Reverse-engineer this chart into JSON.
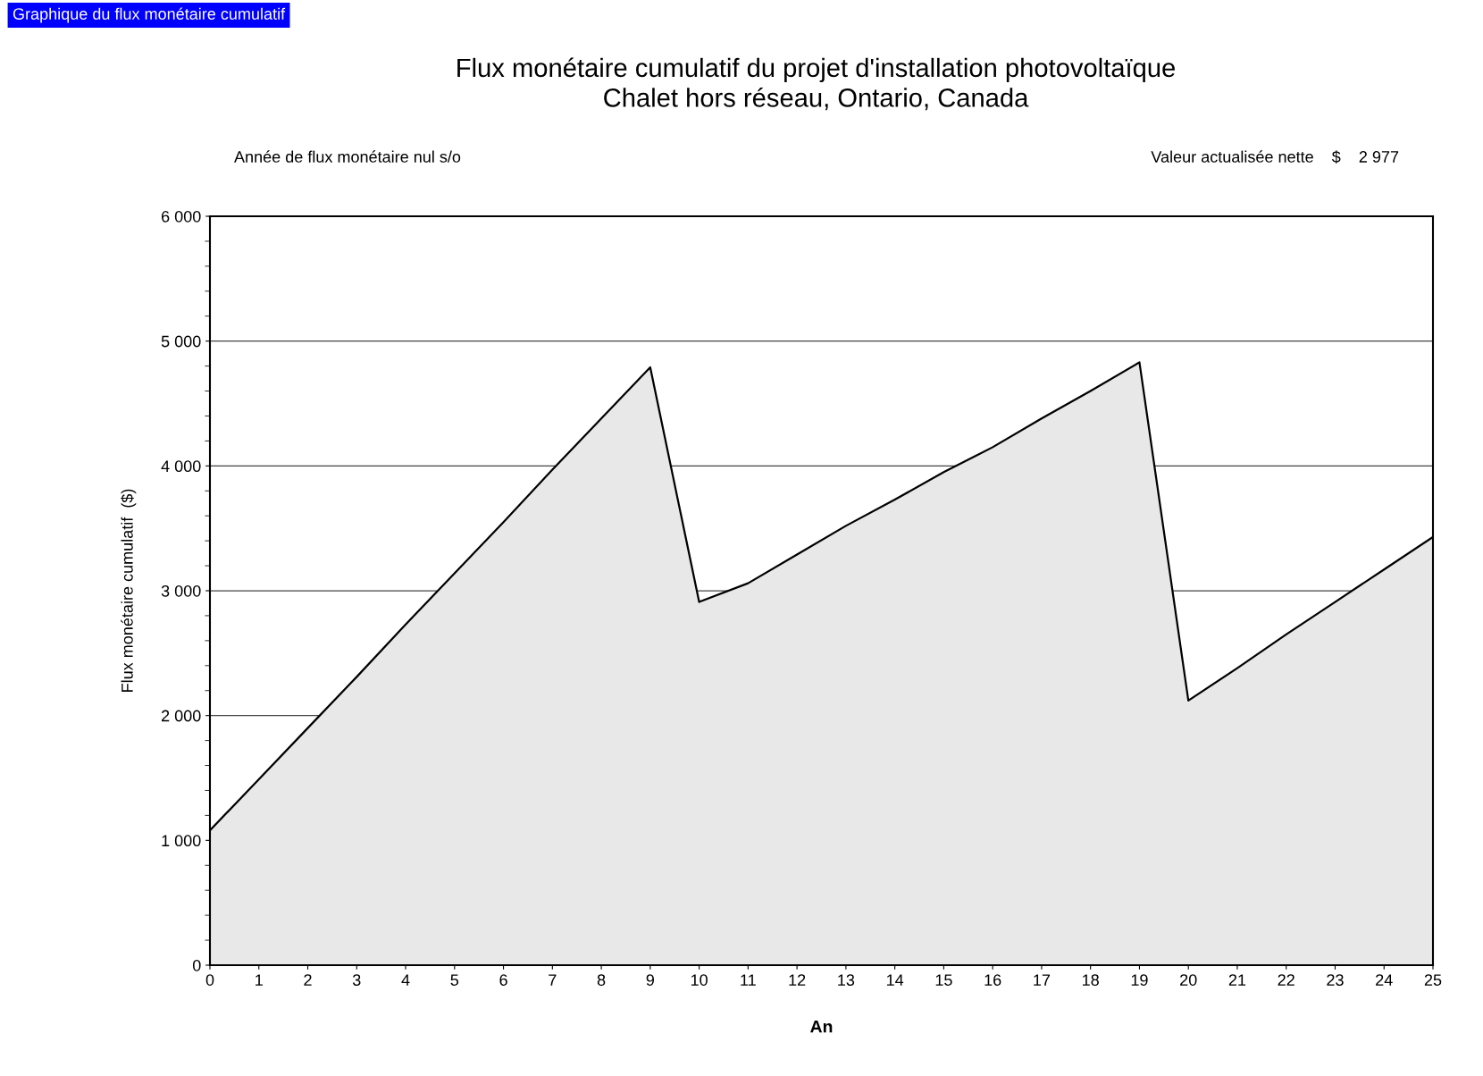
{
  "chart_data": {
    "type": "area",
    "title": "Flux monétaire cumulatif du projet d'installation photovoltaïque\nChalet hors réseau, Ontario, Canada",
    "xlabel": "An",
    "ylabel": "Flux monétaire cumulatif  ($)",
    "annotations": [
      "Graphique du flux monétaire cumulatif",
      "Année de flux monétaire nul s/o",
      "Valeur actualisée nette    $    2 977"
    ],
    "x": [
      0,
      1,
      2,
      3,
      4,
      5,
      6,
      7,
      8,
      9,
      10,
      11,
      12,
      13,
      14,
      15,
      16,
      17,
      18,
      19,
      20,
      21,
      22,
      23,
      24,
      25
    ],
    "series": [
      {
        "color": "#e8e8e8",
        "values": [
          1080,
          1490,
          1900,
          2310,
          2730,
          3140,
          3550,
          3970,
          4380,
          4790,
          2910,
          3060,
          3290,
          3520,
          3730,
          3950,
          4150,
          4380,
          4600,
          4830,
          2120,
          2380,
          2650,
          2910,
          3170,
          3430
        ]
      }
    ],
    "xlim": [
      0,
      25
    ],
    "xticks": [
      0,
      1,
      2,
      3,
      4,
      5,
      6,
      7,
      8,
      9,
      10,
      11,
      12,
      13,
      14,
      15,
      16,
      17,
      18,
      19,
      20,
      21,
      22,
      23,
      24,
      25
    ],
    "ylim": [
      0,
      6000
    ],
    "yticks": [
      {
        "value": 0,
        "label": "0"
      },
      {
        "value": 1000,
        "label": "1 000"
      },
      {
        "value": 2000,
        "label": "2 000"
      },
      {
        "value": 3000,
        "label": "3 000"
      },
      {
        "value": 4000,
        "label": "4 000"
      },
      {
        "value": 5000,
        "label": "5 000"
      },
      {
        "value": 6000,
        "label": "6 000"
      }
    ],
    "grid": "y",
    "legend": false
  }
}
